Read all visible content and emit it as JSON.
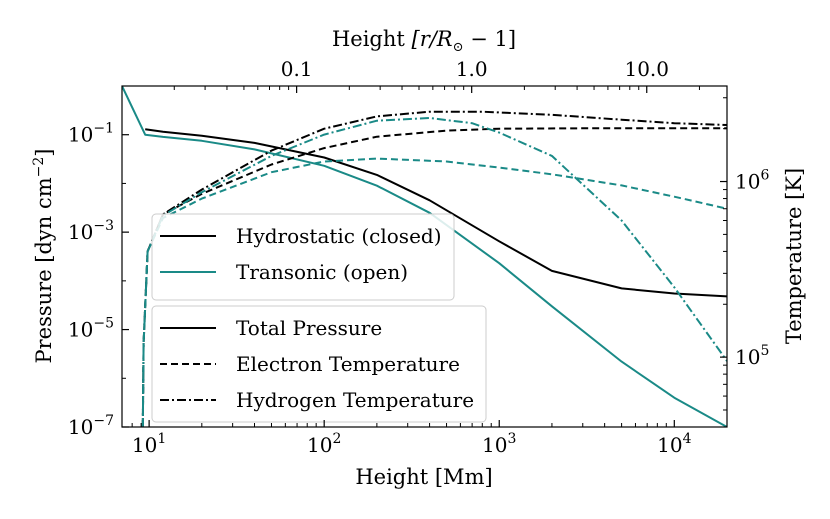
{
  "chart_data": {
    "type": "line",
    "xscale": "log",
    "x_unit": "Mm",
    "xlim": [
      7,
      20000
    ],
    "xlabel": "Height [Mm]",
    "x_ticks": [
      {
        "value": 10,
        "label": "10^1",
        "base": "10",
        "exp": "1"
      },
      {
        "value": 100,
        "label": "10^2",
        "base": "10",
        "exp": "2"
      },
      {
        "value": 1000,
        "label": "10^3",
        "base": "10",
        "exp": "3"
      },
      {
        "value": 10000,
        "label": "10^4",
        "base": "10",
        "exp": "4"
      }
    ],
    "top_axis": {
      "label_main": "Height ",
      "label_math": "[r/R",
      "label_sub": "⊙",
      "label_end": " − 1]",
      "scale": "log",
      "ticks": [
        {
          "value": 0.1,
          "label": "0.1"
        },
        {
          "value": 1.0,
          "label": "1.0"
        },
        {
          "value": 10.0,
          "label": "10.0"
        }
      ]
    },
    "left_axis": {
      "label": "Pressure [dyn cm",
      "label_exp": "−2",
      "label_end": "]",
      "scale": "log",
      "ylim": [
        1e-07,
        1
      ],
      "ticks": [
        {
          "value": 0.1,
          "label": "10^-1",
          "base": "10",
          "exp": "−1"
        },
        {
          "value": 0.001,
          "label": "10^-3",
          "base": "10",
          "exp": "−3"
        },
        {
          "value": 1e-05,
          "label": "10^-5",
          "base": "10",
          "exp": "−5"
        },
        {
          "value": 1e-07,
          "label": "10^-7",
          "base": "10",
          "exp": "−7"
        }
      ]
    },
    "right_axis": {
      "label": "Temperature [K]",
      "scale": "log",
      "ylim": [
        40000,
        3500000
      ],
      "ticks": [
        {
          "value": 1000000,
          "label": "10^6",
          "base": "10",
          "exp": "6"
        },
        {
          "value": 100000,
          "label": "10^5",
          "base": "10",
          "exp": "5"
        }
      ]
    },
    "series": [
      {
        "name": "Hydrostatic (closed) - Total Pressure",
        "model": "Hydrostatic (closed)",
        "quantity": "Total Pressure",
        "axis": "left",
        "color": "#000000",
        "style": "solid",
        "points": [
          [
            9.5,
            0.13
          ],
          [
            12,
            0.115
          ],
          [
            20,
            0.095
          ],
          [
            40,
            0.068
          ],
          [
            100,
            0.034
          ],
          [
            200,
            0.015
          ],
          [
            400,
            0.0045
          ],
          [
            1000,
            0.00065
          ],
          [
            2000,
            0.00016
          ],
          [
            5000,
            7e-05
          ],
          [
            10000,
            5.5e-05
          ],
          [
            20000,
            4.8e-05
          ]
        ]
      },
      {
        "name": "Transonic (open) - Total Pressure",
        "model": "Transonic (open)",
        "quantity": "Total Pressure",
        "axis": "left",
        "color": "#1a8a87",
        "style": "solid",
        "points": [
          [
            7,
            1.0
          ],
          [
            9.5,
            0.1
          ],
          [
            12,
            0.09
          ],
          [
            20,
            0.075
          ],
          [
            40,
            0.05
          ],
          [
            100,
            0.023
          ],
          [
            200,
            0.009
          ],
          [
            400,
            0.0025
          ],
          [
            1000,
            0.00023
          ],
          [
            2000,
            3e-05
          ],
          [
            5000,
            2.2e-06
          ],
          [
            10000,
            4e-07
          ],
          [
            20000,
            1e-07
          ]
        ]
      },
      {
        "name": "Hydrostatic (closed) - Electron Temperature",
        "model": "Hydrostatic (closed)",
        "quantity": "Electron Temperature",
        "axis": "right",
        "color": "#000000",
        "style": "dashed",
        "points": [
          [
            9.2,
            40000
          ],
          [
            9.3,
            120000
          ],
          [
            9.8,
            400000
          ],
          [
            12,
            650000
          ],
          [
            20,
            850000
          ],
          [
            50,
            1250000
          ],
          [
            100,
            1550000
          ],
          [
            200,
            1800000
          ],
          [
            500,
            1950000
          ],
          [
            1000,
            2000000
          ],
          [
            3000,
            2010000
          ],
          [
            10000,
            2010000
          ],
          [
            20000,
            2010000
          ]
        ]
      },
      {
        "name": "Hydrostatic (closed) - Hydrogen Temperature",
        "model": "Hydrostatic (closed)",
        "quantity": "Hydrogen Temperature",
        "axis": "right",
        "color": "#000000",
        "style": "dashdot",
        "points": [
          [
            9.2,
            40000
          ],
          [
            9.3,
            120000
          ],
          [
            9.8,
            400000
          ],
          [
            12,
            650000
          ],
          [
            20,
            900000
          ],
          [
            50,
            1500000
          ],
          [
            100,
            2000000
          ],
          [
            200,
            2350000
          ],
          [
            400,
            2500000
          ],
          [
            800,
            2500000
          ],
          [
            2000,
            2400000
          ],
          [
            5000,
            2250000
          ],
          [
            10000,
            2150000
          ],
          [
            20000,
            2100000
          ]
        ]
      },
      {
        "name": "Transonic (open) - Electron Temperature",
        "model": "Transonic (open)",
        "quantity": "Electron Temperature",
        "axis": "right",
        "color": "#1a8a87",
        "style": "dashed",
        "points": [
          [
            9.2,
            40000
          ],
          [
            9.3,
            120000
          ],
          [
            9.8,
            400000
          ],
          [
            12,
            620000
          ],
          [
            20,
            800000
          ],
          [
            50,
            1130000
          ],
          [
            100,
            1300000
          ],
          [
            200,
            1350000
          ],
          [
            500,
            1300000
          ],
          [
            1000,
            1200000
          ],
          [
            2000,
            1100000
          ],
          [
            5000,
            950000
          ],
          [
            10000,
            820000
          ],
          [
            20000,
            700000
          ]
        ]
      },
      {
        "name": "Transonic (open) - Hydrogen Temperature",
        "model": "Transonic (open)",
        "quantity": "Hydrogen Temperature",
        "axis": "right",
        "color": "#1a8a87",
        "style": "dashdot",
        "points": [
          [
            9.2,
            40000
          ],
          [
            9.3,
            120000
          ],
          [
            9.8,
            400000
          ],
          [
            12,
            640000
          ],
          [
            20,
            870000
          ],
          [
            50,
            1400000
          ],
          [
            100,
            1850000
          ],
          [
            200,
            2220000
          ],
          [
            400,
            2300000
          ],
          [
            700,
            2150000
          ],
          [
            1000,
            1900000
          ],
          [
            2000,
            1400000
          ],
          [
            5000,
            600000
          ],
          [
            10000,
            250000
          ],
          [
            20000,
            95000
          ]
        ]
      }
    ],
    "legends": [
      {
        "position": "center-left",
        "entries": [
          {
            "label": "Hydrostatic (closed)",
            "color": "#000000",
            "style": "solid"
          },
          {
            "label": "Transonic (open)",
            "color": "#1a8a87",
            "style": "solid"
          }
        ]
      },
      {
        "position": "lower-left",
        "entries": [
          {
            "label": "Total Pressure",
            "color": "#000000",
            "style": "solid"
          },
          {
            "label": "Electron Temperature",
            "color": "#000000",
            "style": "dashed"
          },
          {
            "label": "Hydrogen Temperature",
            "color": "#000000",
            "style": "dashdot"
          }
        ]
      }
    ]
  }
}
